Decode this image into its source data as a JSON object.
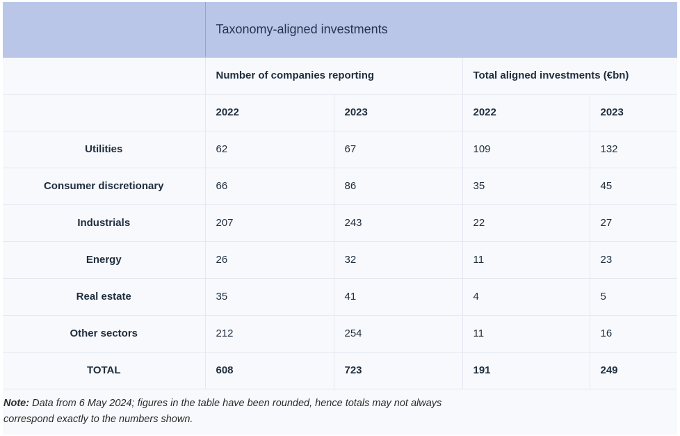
{
  "table": {
    "title": "Taxonomy-aligned investments",
    "group_headers": [
      "Number of companies reporting",
      "Total aligned investments (€bn)"
    ],
    "year_headers": [
      "2022",
      "2023",
      "2022",
      "2023"
    ],
    "rows": [
      {
        "sector": "Utilities",
        "values": [
          "62",
          "67",
          "109",
          "132"
        ]
      },
      {
        "sector": "Consumer discretionary",
        "values": [
          "66",
          "86",
          "35",
          "45"
        ]
      },
      {
        "sector": "Industrials",
        "values": [
          "207",
          "243",
          "22",
          "27"
        ]
      },
      {
        "sector": "Energy",
        "values": [
          "26",
          "32",
          "11",
          "23"
        ]
      },
      {
        "sector": "Real estate",
        "values": [
          "35",
          "41",
          "4",
          "5"
        ]
      },
      {
        "sector": "Other sectors",
        "values": [
          "212",
          "254",
          "11",
          "16"
        ]
      }
    ],
    "total": {
      "sector": "TOTAL",
      "values": [
        "608",
        "723",
        "191",
        "249"
      ]
    }
  },
  "note": {
    "label": "Note:",
    "text": " Data from 6 May 2024; figures in the table have been rounded, hence totals may not always correspond exactly to the numbers shown."
  },
  "colors": {
    "header_background": "#b9c6e8",
    "page_background": "#f7f9fc",
    "grid_lines": "#e3e8f1"
  }
}
